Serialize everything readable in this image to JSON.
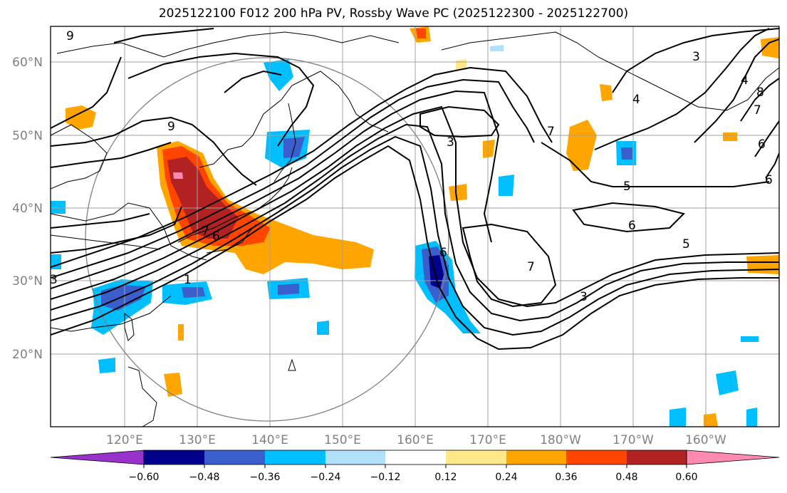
{
  "title": "2025122100 F012 200 hPa PV, Rossby Wave PC (2025122300 - 2025122700)",
  "lat_ticks": [
    "60°N",
    "50°N",
    "40°N",
    "30°N",
    "20°N"
  ],
  "lon_ticks": [
    "120°E",
    "130°E",
    "140°E",
    "150°E",
    "160°E",
    "170°E",
    "180°W",
    "170°W",
    "160°W"
  ],
  "colorbar": {
    "labels": [
      "−0.60",
      "−0.48",
      "−0.36",
      "−0.24",
      "−0.12",
      "0.12",
      "0.24",
      "0.36",
      "0.48",
      "0.60"
    ],
    "colors": [
      "#9932cc",
      "#00008b",
      "#3a5fcd",
      "#00bfff",
      "#b0e0fa",
      "#ffffff",
      "#ffe88a",
      "#ffa500",
      "#ff4500",
      "#b22222",
      "#ff8ab0"
    ]
  },
  "contour_labels": [
    "9",
    "9",
    "7",
    "6",
    "1",
    "3",
    "3",
    "4",
    "7",
    "5",
    "6",
    "5",
    "6",
    "7",
    "3",
    "8",
    "7",
    "6",
    "4",
    "6",
    "3"
  ],
  "colors": {
    "contour": "#000000",
    "grid": "#a0a0a0",
    "tick": "#808080"
  }
}
